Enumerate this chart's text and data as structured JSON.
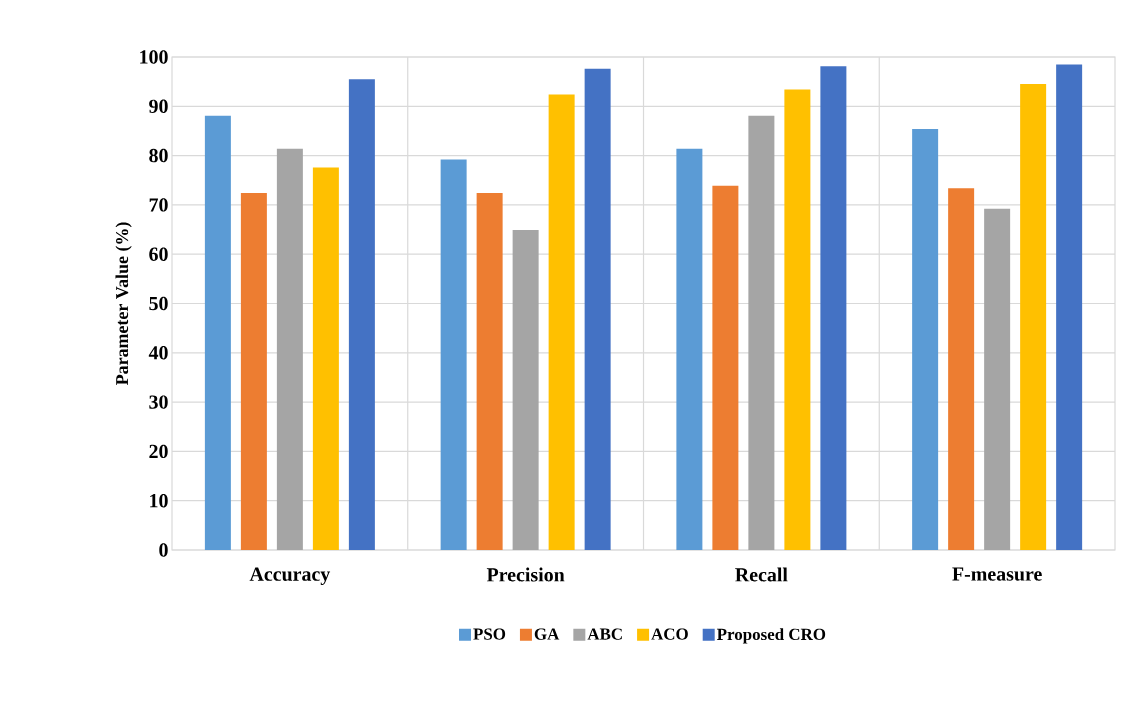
{
  "chart_data": {
    "type": "bar",
    "ylabel": "Parameter Value (%)",
    "categories": [
      "Accuracy",
      "Precision",
      "Recall",
      "F-measure"
    ],
    "series": [
      {
        "name": "PSO",
        "color": "#5b9bd5",
        "values": [
          88.1,
          79.2,
          81.4,
          85.4
        ]
      },
      {
        "name": "GA",
        "color": "#ed7d31",
        "values": [
          72.4,
          72.4,
          73.9,
          73.4
        ]
      },
      {
        "name": "ABC",
        "color": "#a5a5a5",
        "values": [
          81.4,
          64.9,
          88.1,
          69.2
        ]
      },
      {
        "name": "ACO",
        "color": "#ffc000",
        "values": [
          77.6,
          92.4,
          93.4,
          94.5
        ]
      },
      {
        "name": "Proposed CRO",
        "color": "#4472c4",
        "values": [
          95.5,
          97.6,
          98.1,
          98.5
        ]
      }
    ],
    "ylim": [
      0,
      100
    ],
    "yticks": [
      0,
      10,
      20,
      30,
      40,
      50,
      60,
      70,
      80,
      90,
      100
    ],
    "grid": true,
    "legend": "bottom"
  }
}
